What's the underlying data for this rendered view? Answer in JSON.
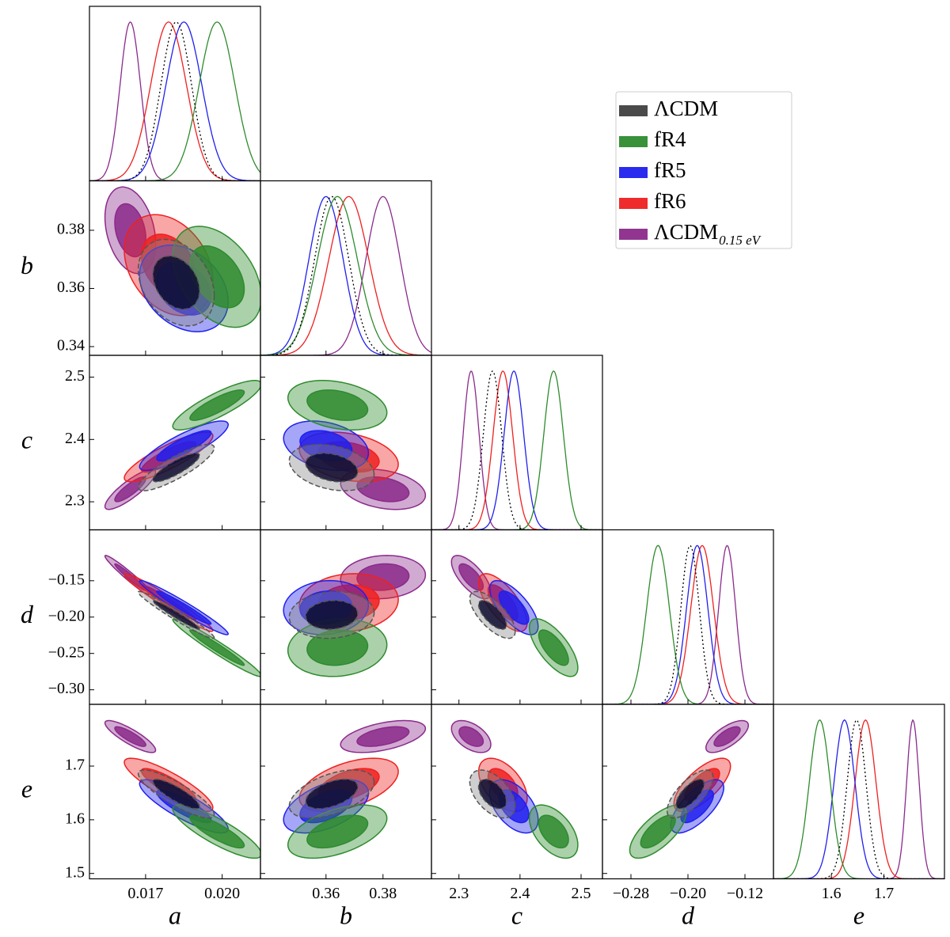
{
  "chart_data": {
    "type": "corner",
    "params": [
      {
        "label": "a",
        "lim": [
          0.0148,
          0.0215
        ],
        "xticks": [
          0.017,
          {
            "value": 0.02,
            "label": "0.020"
          }
        ]
      },
      {
        "label": "b",
        "lim": [
          0.337,
          0.397
        ],
        "xticks": [
          0.36,
          0.38
        ],
        "yticks": [
          0.34,
          0.36,
          0.38
        ]
      },
      {
        "label": "c",
        "lim": [
          2.255,
          2.535
        ],
        "xticks": [
          2.3,
          2.4,
          2.5
        ],
        "yticks": [
          2.3,
          2.4,
          2.5
        ]
      },
      {
        "label": "d",
        "lim": [
          -0.32,
          -0.08
        ],
        "xticks": [
          {
            "value": -0.28,
            "label": "−0.28"
          },
          {
            "value": -0.2,
            "label": "−0.20"
          },
          {
            "value": -0.12,
            "label": "−0.12"
          }
        ],
        "yticks": [
          {
            "value": -0.15,
            "label": "−0.15"
          },
          {
            "value": -0.2,
            "label": "−0.20"
          },
          {
            "value": -0.25,
            "label": "−0.25"
          },
          {
            "value": -0.3,
            "label": "−0.30"
          }
        ]
      },
      {
        "label": "e",
        "lim": [
          1.49,
          1.815
        ],
        "xticks": [
          1.6,
          1.7
        ],
        "yticks": [
          1.5,
          1.6,
          1.7
        ]
      }
    ],
    "series": [
      {
        "name": "ΛCDM",
        "color": "#404040",
        "linestyle": "dashed",
        "means": [
          0.0182,
          0.362,
          2.355,
          -0.197,
          1.648
        ],
        "sigmas": [
          0.0006,
          0.006,
          0.015,
          0.013,
          0.018
        ],
        "corr": [
          -0.3,
          0.85,
          -0.97,
          -0.85,
          -0.3,
          0.1,
          0.5,
          -0.7,
          -0.5,
          0.7
        ]
      },
      {
        "name": "fR4",
        "color": "#2e8b2e",
        "linestyle": "solid",
        "means": [
          0.0198,
          0.364,
          2.455,
          -0.242,
          1.578
        ],
        "sigmas": [
          0.0007,
          0.007,
          0.016,
          0.016,
          0.02
        ],
        "corr": [
          -0.4,
          0.85,
          -0.97,
          -0.85,
          -0.3,
          0.1,
          0.5,
          -0.7,
          -0.5,
          0.7
        ]
      },
      {
        "name": "fR5",
        "color": "#2020ee",
        "linestyle": "solid",
        "means": [
          0.0185,
          0.36,
          2.39,
          -0.187,
          1.625
        ],
        "sigmas": [
          0.0007,
          0.006,
          0.016,
          0.015,
          0.02
        ],
        "corr": [
          -0.3,
          0.85,
          -0.97,
          -0.85,
          -0.3,
          0.1,
          0.5,
          -0.7,
          -0.5,
          0.7
        ]
      },
      {
        "name": "fR6",
        "color": "#ee2020",
        "linestyle": "solid",
        "means": [
          0.0179,
          0.368,
          2.372,
          -0.18,
          1.665
        ],
        "sigmas": [
          0.0007,
          0.007,
          0.016,
          0.016,
          0.02
        ],
        "corr": [
          -0.3,
          0.85,
          -0.97,
          -0.85,
          -0.3,
          0.1,
          0.5,
          -0.7,
          -0.5,
          0.7
        ]
      },
      {
        "name": "ΛCDM",
        "subscript": "0.15 eV",
        "color": "#8b2a8b",
        "linestyle": "solid",
        "means": [
          0.0164,
          0.38,
          2.32,
          -0.145,
          1.755
        ],
        "sigmas": [
          0.0004,
          0.006,
          0.013,
          0.012,
          0.012
        ],
        "corr": [
          -0.3,
          0.85,
          -0.97,
          -0.85,
          -0.3,
          0.1,
          0.5,
          -0.7,
          -0.5,
          0.7
        ]
      }
    ]
  }
}
